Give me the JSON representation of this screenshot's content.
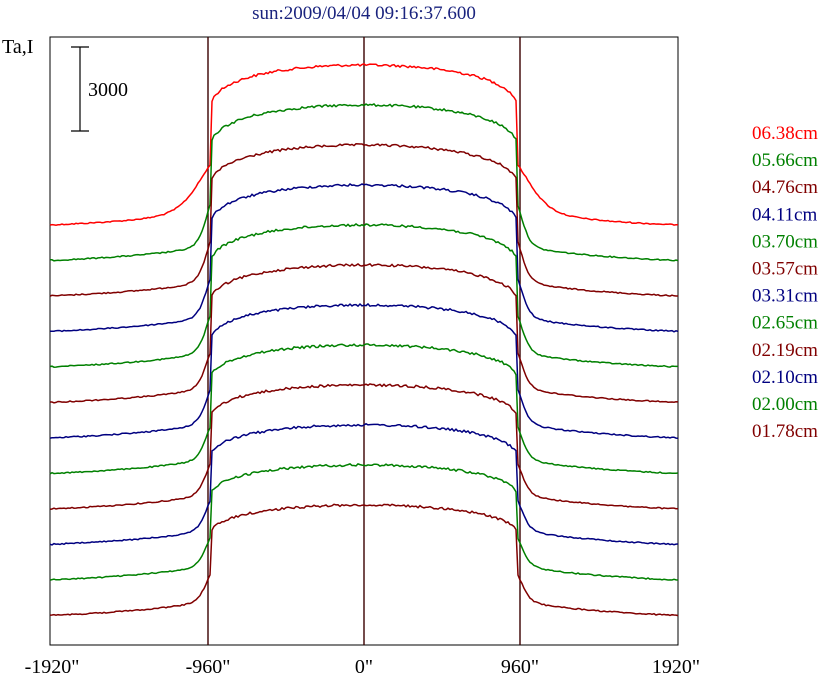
{
  "chart_data": {
    "type": "line",
    "title": "sun:2009/04/04 09:16:37.600",
    "ylabel": "Ta,I",
    "scale_bar": {
      "value": 3000,
      "label": "3000"
    },
    "x_ticks": [
      {
        "value": -1920,
        "label": "-1920\""
      },
      {
        "value": -960,
        "label": "-960\""
      },
      {
        "value": 0,
        "label": "0\""
      },
      {
        "value": 960,
        "label": "960\""
      },
      {
        "value": 1920,
        "label": "1920\""
      }
    ],
    "xlim": [
      -1920,
      1920
    ],
    "vertical_lines": [
      -960,
      0,
      960
    ],
    "grid": false,
    "legend_position": "right",
    "series": [
      {
        "name": "06.38cm",
        "color": "#ff0000"
      },
      {
        "name": "05.66cm",
        "color": "#008000"
      },
      {
        "name": "04.76cm",
        "color": "#800000"
      },
      {
        "name": "04.11cm",
        "color": "#000080"
      },
      {
        "name": "03.70cm",
        "color": "#008000"
      },
      {
        "name": "03.57cm",
        "color": "#800000"
      },
      {
        "name": "03.31cm",
        "color": "#000080"
      },
      {
        "name": "02.65cm",
        "color": "#008000"
      },
      {
        "name": "02.19cm",
        "color": "#800000"
      },
      {
        "name": "02.10cm",
        "color": "#000080"
      },
      {
        "name": "02.00cm",
        "color": "#008000"
      },
      {
        "name": "01.78cm",
        "color": "#800000"
      }
    ]
  }
}
